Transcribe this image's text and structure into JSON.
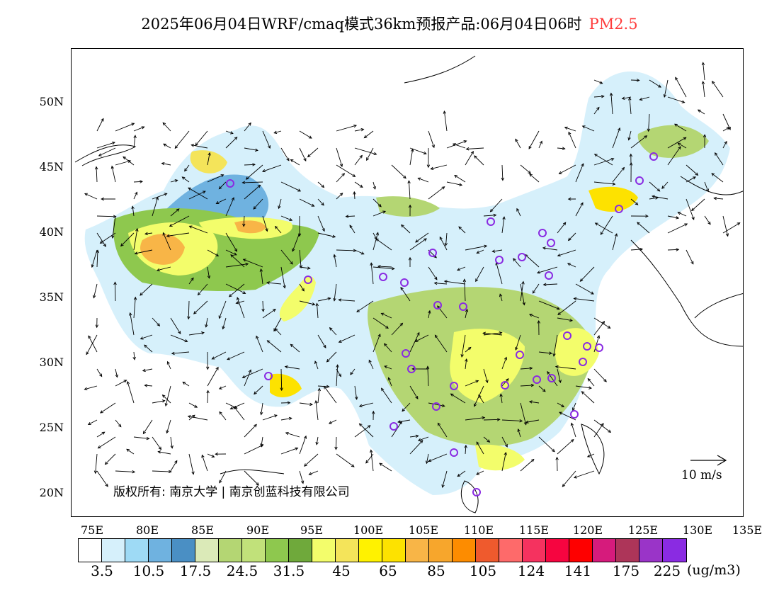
{
  "title": {
    "text": "2025年06月04日WRF/cmaq模式36km预报产品:06月04日06时",
    "variable": "PM2.5"
  },
  "copyright": "版权所有: 南京大学 | 南京创蓝科技有限公司",
  "wind_reference": "10  m/s",
  "lat_labels": [
    "50N",
    "45N",
    "40N",
    "35N",
    "30N",
    "25N",
    "20N"
  ],
  "lon_labels": [
    "75E",
    "80E",
    "85E",
    "90E",
    "95E",
    "100E",
    "105E",
    "110E",
    "115E",
    "120E",
    "125E",
    "130E",
    "135E"
  ],
  "legend": {
    "colors": [
      "#ffffff",
      "#d6f0fb",
      "#9edaf5",
      "#6fb2e0",
      "#4a8fc4",
      "#dbeab8",
      "#b4d673",
      "#c1e17a",
      "#8ec84e",
      "#6fa93b",
      "#f3fd6b",
      "#f4e45a",
      "#fff200",
      "#fde200",
      "#f8b547",
      "#f7a62c",
      "#fd8c00",
      "#ef5a2d",
      "#fe6a6a",
      "#f5325f",
      "#f60540",
      "#fe0000",
      "#d61b7c",
      "#ad3559",
      "#9a34c8",
      "#8a2be2"
    ],
    "labels": [
      "3.5",
      "10.5",
      "17.5",
      "24.5",
      "31.5",
      "45",
      "65",
      "85",
      "105",
      "124",
      "141",
      "175",
      "225"
    ],
    "unit": "(ug/m3)"
  },
  "icons": {
    "station": "station-circle-icon",
    "wind": "wind-arrow-icon"
  }
}
